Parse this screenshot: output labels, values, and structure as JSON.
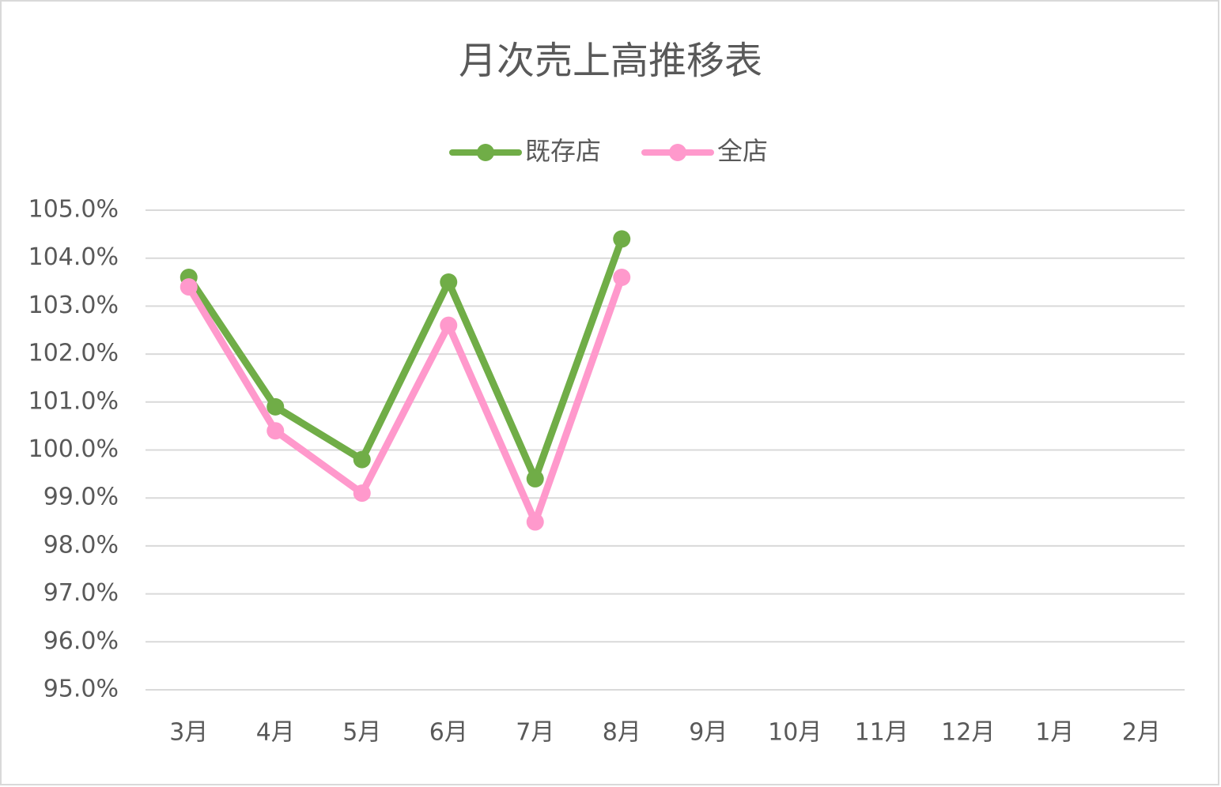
{
  "chart_data": {
    "type": "line",
    "title": "月次売上高推移表",
    "categories": [
      "3月",
      "4月",
      "5月",
      "6月",
      "7月",
      "8月",
      "9月",
      "10月",
      "11月",
      "12月",
      "1月",
      "2月"
    ],
    "series": [
      {
        "name": "既存店",
        "color": "#70ad47",
        "values": [
          103.6,
          100.9,
          99.8,
          103.5,
          99.4,
          104.4,
          null,
          null,
          null,
          null,
          null,
          null
        ]
      },
      {
        "name": "全店",
        "color": "#ff99cc",
        "values": [
          103.4,
          100.4,
          99.1,
          102.6,
          98.5,
          103.6,
          null,
          null,
          null,
          null,
          null,
          null
        ]
      }
    ],
    "ylim": [
      95,
      105
    ],
    "yticks": [
      {
        "value": 95,
        "label": "95.0%"
      },
      {
        "value": 96,
        "label": "96.0%"
      },
      {
        "value": 97,
        "label": "97.0%"
      },
      {
        "value": 98,
        "label": "98.0%"
      },
      {
        "value": 99,
        "label": "99.0%"
      },
      {
        "value": 100,
        "label": "100.0%"
      },
      {
        "value": 101,
        "label": "101.0%"
      },
      {
        "value": 102,
        "label": "102.0%"
      },
      {
        "value": 103,
        "label": "103.0%"
      },
      {
        "value": 104,
        "label": "104.0%"
      },
      {
        "value": 105,
        "label": "105.0%"
      }
    ],
    "grid": true,
    "legend": "top"
  }
}
